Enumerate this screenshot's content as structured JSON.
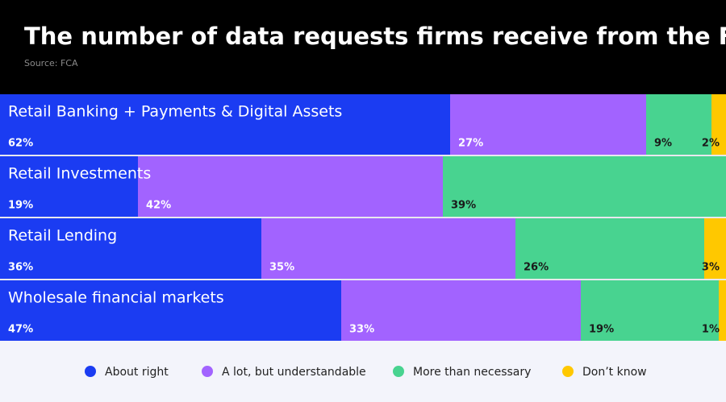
{
  "chart_data": {
    "type": "stacked-bar-100",
    "title": "The number of data requests firms receive from the FCA",
    "subtitle": "Source: FCA",
    "categories": [
      "Retail Banking + Payments & Digital Assets",
      "Retail Investments",
      "Retail Lending",
      "Wholesale financial markets"
    ],
    "series": [
      {
        "name": "About right",
        "color": "#1b3cf2",
        "values": [
          62,
          19,
          36,
          47
        ],
        "value_labels": [
          "62%",
          "19%",
          "36%",
          "47%"
        ]
      },
      {
        "name": "A lot, but understandable",
        "color": "#a263ff",
        "values": [
          27,
          42,
          35,
          33
        ],
        "value_labels": [
          "27%",
          "42%",
          "35%",
          "33%"
        ]
      },
      {
        "name": "More than necessary",
        "color": "#48d390",
        "values": [
          9,
          39,
          26,
          19
        ],
        "value_labels": [
          "9%",
          "39%",
          "26%",
          "19%"
        ]
      },
      {
        "name": "Don’t know",
        "color": "#ffc800",
        "values": [
          2,
          null,
          3,
          1
        ],
        "value_labels": [
          "2%",
          null,
          "3%",
          "1%"
        ]
      }
    ],
    "xlim": [
      0,
      100
    ]
  }
}
